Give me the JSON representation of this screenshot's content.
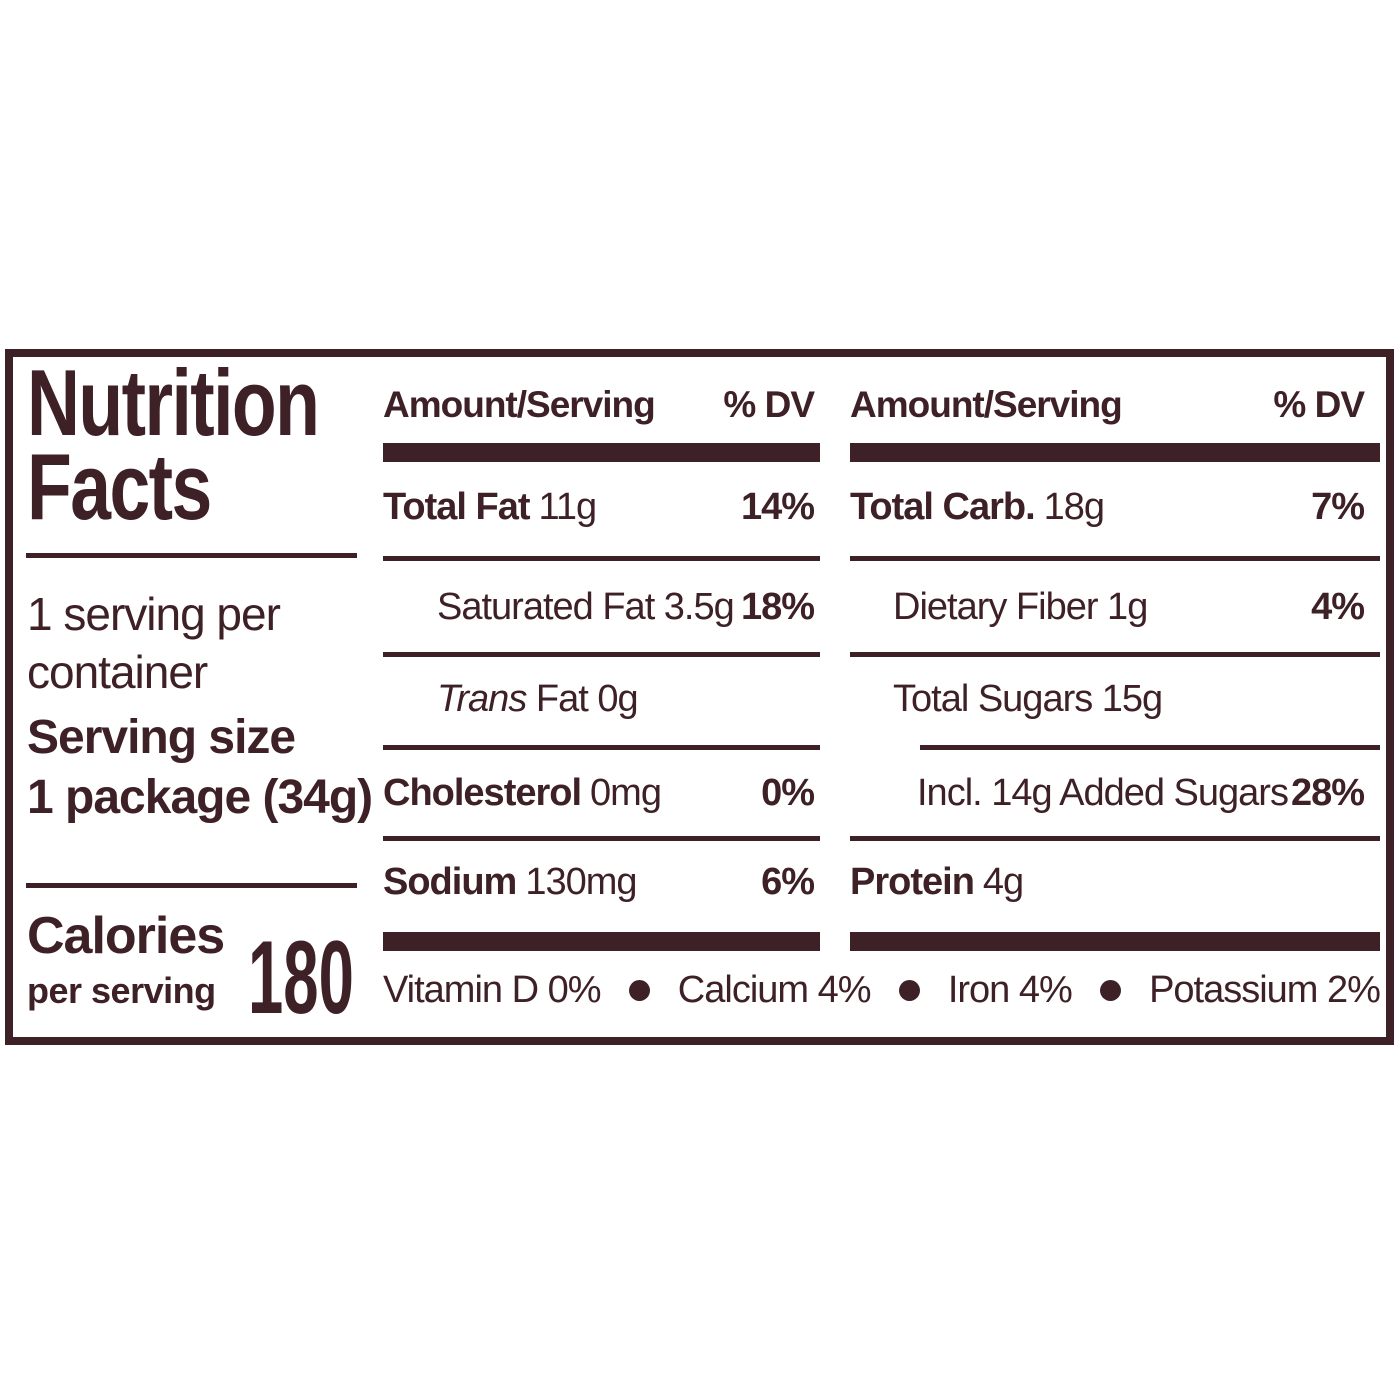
{
  "colors": {
    "ink": "#3e2126",
    "background": "#ffffff"
  },
  "nutrition_facts": {
    "title_line1": "Nutrition",
    "title_line2": "Facts",
    "servings_line1": "1 serving per",
    "servings_line2": "container",
    "serving_size_label": "Serving size",
    "serving_size_value": "1 package (34g)",
    "calories": {
      "label": "Calories",
      "sublabel": "per serving",
      "value": "180"
    },
    "column_header": {
      "amount": "Amount/Serving",
      "dv": "% DV"
    },
    "middle_column": {
      "total_fat": {
        "name": "Total Fat",
        "amount": "11g",
        "dv": "14%"
      },
      "saturated_fat": {
        "text": "Saturated Fat 3.5g",
        "dv": "18%"
      },
      "trans_fat": {
        "name_italic": "Trans",
        "text_rest": " Fat 0g"
      },
      "cholesterol": {
        "name": "Cholesterol",
        "amount": "0mg",
        "dv": "0%"
      },
      "sodium": {
        "name": "Sodium",
        "amount": "130mg",
        "dv": "6%"
      }
    },
    "right_column": {
      "total_carb": {
        "name": "Total Carb.",
        "amount": "18g",
        "dv": "7%"
      },
      "dietary_fiber": {
        "text": "Dietary Fiber 1g",
        "dv": "4%"
      },
      "total_sugars": {
        "text": "Total Sugars 15g"
      },
      "added_sugars": {
        "text": "Incl. 14g Added Sugars",
        "dv": "28%"
      },
      "protein": {
        "name": "Protein",
        "amount": "4g"
      }
    },
    "micronutrients": [
      "Vitamin D 0%",
      "Calcium 4%",
      "Iron 4%",
      "Potassium 2%"
    ]
  }
}
